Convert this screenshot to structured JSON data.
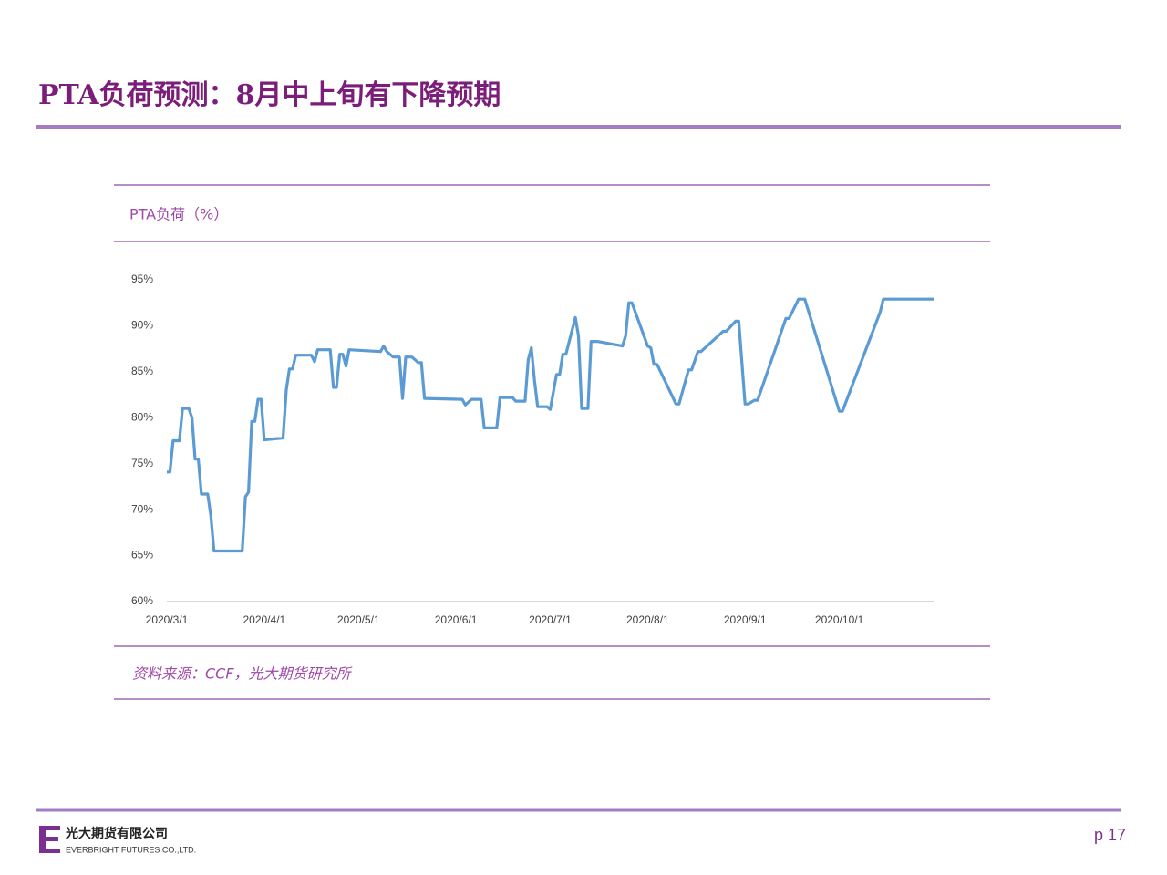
{
  "header": {
    "title": "PTA负荷预测：8月中上旬有下降预期"
  },
  "chart_data": {
    "type": "line",
    "title": "PTA负荷（%）",
    "source": "资料来源：CCF，光大期货研究所",
    "color": "#5b9bd5",
    "x": [
      "2020/3/1",
      "2020/3/2",
      "2020/3/3",
      "2020/3/5",
      "2020/3/6",
      "2020/3/8",
      "2020/3/9",
      "2020/3/10",
      "2020/3/11",
      "2020/3/12",
      "2020/3/14",
      "2020/3/15",
      "2020/3/16",
      "2020/3/25",
      "2020/3/26",
      "2020/3/27",
      "2020/3/28",
      "2020/3/29",
      "2020/3/30",
      "2020/3/31",
      "2020/4/1",
      "2020/4/7",
      "2020/4/8",
      "2020/4/9",
      "2020/4/10",
      "2020/4/11",
      "2020/4/16",
      "2020/4/17",
      "2020/4/18",
      "2020/4/22",
      "2020/4/23",
      "2020/4/24",
      "2020/4/25",
      "2020/4/26",
      "2020/4/27",
      "2020/4/28",
      "2020/5/8",
      "2020/5/9",
      "2020/5/10",
      "2020/5/12",
      "2020/5/14",
      "2020/5/15",
      "2020/5/16",
      "2020/5/18",
      "2020/5/20",
      "2020/5/21",
      "2020/5/22",
      "2020/6/3",
      "2020/6/4",
      "2020/6/6",
      "2020/6/9",
      "2020/6/10",
      "2020/6/14",
      "2020/6/15",
      "2020/6/19",
      "2020/6/20",
      "2020/6/23",
      "2020/6/24",
      "2020/6/25",
      "2020/6/26",
      "2020/6/27",
      "2020/6/30",
      "2020/7/1",
      "2020/7/3",
      "2020/7/4",
      "2020/7/5",
      "2020/7/6",
      "2020/7/9",
      "2020/7/10",
      "2020/7/11",
      "2020/7/13",
      "2020/7/14",
      "2020/7/16",
      "2020/7/24",
      "2020/7/25",
      "2020/7/26",
      "2020/7/27",
      "2020/8/1",
      "2020/8/2",
      "2020/8/3",
      "2020/8/4",
      "2020/8/10",
      "2020/8/11",
      "2020/8/14",
      "2020/8/15",
      "2020/8/17",
      "2020/8/18",
      "2020/8/25",
      "2020/8/26",
      "2020/8/29",
      "2020/8/30",
      "2020/9/1",
      "2020/9/2",
      "2020/9/4",
      "2020/9/5",
      "2020/9/14",
      "2020/9/15",
      "2020/9/18",
      "2020/9/20",
      "2020/10/1",
      "2020/10/2",
      "2020/10/14",
      "2020/10/15",
      "2020/10/16",
      "2020/10/31"
    ],
    "values": [
      74.1,
      74.1,
      77.5,
      77.5,
      81,
      81,
      80,
      75.5,
      75.5,
      71.7,
      71.7,
      69.3,
      65.5,
      65.5,
      71.4,
      71.9,
      79.6,
      79.6,
      82,
      82,
      77.6,
      77.8,
      83,
      85.3,
      85.3,
      86.8,
      86.8,
      86.1,
      87.4,
      87.4,
      83.3,
      83.3,
      86.9,
      86.9,
      85.6,
      87.4,
      87.2,
      87.8,
      87.2,
      86.6,
      86.6,
      82.1,
      86.6,
      86.6,
      86,
      86,
      82.1,
      82,
      81.4,
      82,
      82,
      78.9,
      78.9,
      82.2,
      82.2,
      81.8,
      81.8,
      86.3,
      87.6,
      84,
      81.2,
      81.2,
      80.9,
      84.7,
      84.7,
      86.9,
      86.9,
      90.9,
      88.9,
      81,
      81,
      88.3,
      88.3,
      87.8,
      88.9,
      92.5,
      92.5,
      87.8,
      87.6,
      85.8,
      85.8,
      81.5,
      81.5,
      85.2,
      85.2,
      87.2,
      87.2,
      89.4,
      89.4,
      90.5,
      90.5,
      81.5,
      81.5,
      81.9,
      81.9,
      90.8,
      90.8,
      92.9,
      92.9,
      80.7,
      80.7,
      91.5,
      92.9,
      92.9,
      92.9
    ],
    "xlim": [
      "2020/3/1",
      "2020/10/31"
    ],
    "xticks": [
      "2020/3/1",
      "2020/4/1",
      "2020/5/1",
      "2020/6/1",
      "2020/7/1",
      "2020/8/1",
      "2020/9/1",
      "2020/10/1"
    ],
    "ylim": [
      60,
      95
    ],
    "yticks": [
      {
        "value": 60,
        "label": "60%"
      },
      {
        "value": 65,
        "label": "65%"
      },
      {
        "value": 70,
        "label": "70%"
      },
      {
        "value": 75,
        "label": "75%"
      },
      {
        "value": 80,
        "label": "80%"
      },
      {
        "value": 85,
        "label": "85%"
      },
      {
        "value": 90,
        "label": "90%"
      },
      {
        "value": 95,
        "label": "95%"
      }
    ]
  },
  "footer": {
    "company": "光大期货有限公司",
    "company_en": "EVERBRIGHT FUTURES CO.,LTD.",
    "page": "p 17"
  }
}
